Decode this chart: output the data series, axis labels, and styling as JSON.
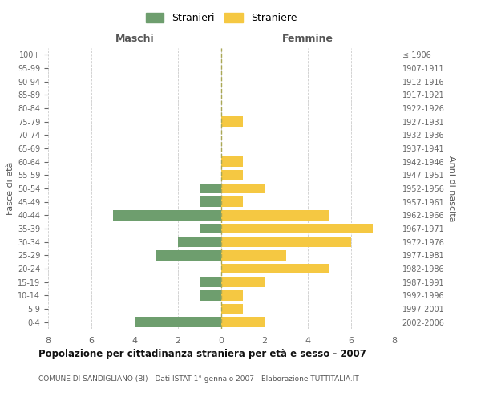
{
  "age_groups": [
    "100+",
    "95-99",
    "90-94",
    "85-89",
    "80-84",
    "75-79",
    "70-74",
    "65-69",
    "60-64",
    "55-59",
    "50-54",
    "45-49",
    "40-44",
    "35-39",
    "30-34",
    "25-29",
    "20-24",
    "15-19",
    "10-14",
    "5-9",
    "0-4"
  ],
  "birth_years": [
    "≤ 1906",
    "1907-1911",
    "1912-1916",
    "1917-1921",
    "1922-1926",
    "1927-1931",
    "1932-1936",
    "1937-1941",
    "1942-1946",
    "1947-1951",
    "1952-1956",
    "1957-1961",
    "1962-1966",
    "1967-1971",
    "1972-1976",
    "1977-1981",
    "1982-1986",
    "1987-1991",
    "1992-1996",
    "1997-2001",
    "2002-2006"
  ],
  "males": [
    0,
    0,
    0,
    0,
    0,
    0,
    0,
    0,
    0,
    0,
    1,
    1,
    5,
    1,
    2,
    3,
    0,
    1,
    1,
    0,
    4
  ],
  "females": [
    0,
    0,
    0,
    0,
    0,
    1,
    0,
    0,
    1,
    1,
    2,
    1,
    5,
    7,
    6,
    3,
    5,
    2,
    1,
    1,
    2
  ],
  "male_color": "#6e9e6e",
  "female_color": "#f5c842",
  "title": "Popolazione per cittadinanza straniera per età e sesso - 2007",
  "subtitle": "COMUNE DI SANDIGLIANO (BI) - Dati ISTAT 1° gennaio 2007 - Elaborazione TUTTITALIA.IT",
  "ylabel_left": "Fasce di età",
  "ylabel_right": "Anni di nascita",
  "xlabel_left": "Maschi",
  "xlabel_right": "Femmine",
  "legend_male": "Stranieri",
  "legend_female": "Straniere",
  "xlim": 8,
  "background_color": "#ffffff",
  "grid_color": "#cccccc"
}
